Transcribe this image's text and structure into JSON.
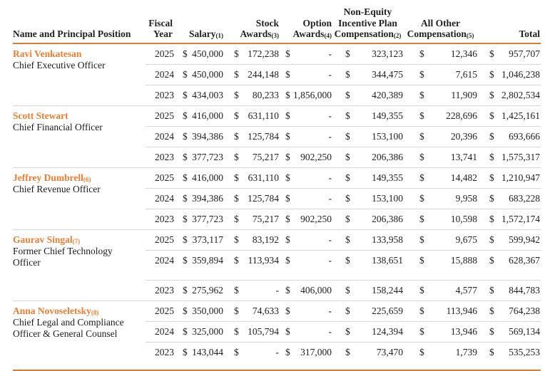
{
  "colors": {
    "orange": "#ED7D31",
    "rule-orange": "#DD7B33",
    "rule-gray": "#D6D4D4",
    "text": "#212121"
  },
  "currency_symbol": "$",
  "empty_value": "-",
  "table": {
    "columns": [
      {
        "id": "name",
        "label_lines": [
          "Name and Principal Position"
        ],
        "sub": null,
        "align": "left",
        "width": 186
      },
      {
        "id": "year",
        "label_lines": [
          "Fiscal",
          "Year"
        ],
        "sub": null,
        "align": "right",
        "width": 48
      },
      {
        "id": "salary",
        "label_lines": [
          "Salary"
        ],
        "sub": "(1)",
        "align": "right",
        "width": 62
      },
      {
        "id": "stock",
        "label_lines": [
          "Stock",
          "Awards"
        ],
        "sub": "(3)",
        "align": "right",
        "width": 78
      },
      {
        "id": "option",
        "label_lines": [
          "Option",
          "Awards"
        ],
        "sub": "(4)",
        "align": "right",
        "width": 74
      },
      {
        "id": "non_equity",
        "label_lines": [
          "Non-Equity",
          "Incentive Plan",
          "Compensation"
        ],
        "sub": "(2)",
        "align": "center",
        "width": 100
      },
      {
        "id": "all_other",
        "label_lines": [
          "All Other",
          "Compensation"
        ],
        "sub": "(5)",
        "align": "center",
        "width": 104
      },
      {
        "id": "total",
        "label_lines": [
          "Total"
        ],
        "sub": null,
        "align": "right",
        "width": 88
      }
    ],
    "money_column_ids": [
      "salary",
      "stock",
      "option",
      "non_equity",
      "all_other",
      "total"
    ],
    "groups": [
      {
        "name": "Ravi Venkatesan",
        "name_sub": null,
        "title": "Chief Executive Officer",
        "rows": [
          {
            "year": "2025",
            "salary": "450,000",
            "stock": "172,238",
            "option": "-",
            "non_equity": "323,123",
            "all_other": "12,346",
            "total": "957,707"
          },
          {
            "year": "2024",
            "salary": "450,000",
            "stock": "244,148",
            "option": "-",
            "non_equity": "344,475",
            "all_other": "7,615",
            "total": "1,046,238"
          },
          {
            "year": "2023",
            "salary": "434,003",
            "stock": "80,233",
            "option": "1,856,000",
            "non_equity": "420,389",
            "all_other": "11,909",
            "total": "2,802,534"
          }
        ]
      },
      {
        "name": "Scott Stewart",
        "name_sub": null,
        "title": "Chief Financial Officer",
        "rows": [
          {
            "year": "2025",
            "salary": "416,000",
            "stock": "631,110",
            "option": "-",
            "non_equity": "149,355",
            "all_other": "228,696",
            "total": "1,425,161"
          },
          {
            "year": "2024",
            "salary": "394,386",
            "stock": "125,784",
            "option": "-",
            "non_equity": "153,100",
            "all_other": "20,396",
            "total": "693,666"
          },
          {
            "year": "2023",
            "salary": "377,723",
            "stock": "75,217",
            "option": "902,250",
            "non_equity": "206,386",
            "all_other": "13,741",
            "total": "1,575,317"
          }
        ]
      },
      {
        "name": "Jeffrey Dumbrell",
        "name_sub": "(6)",
        "title": "Chief Revenue Officer",
        "rows": [
          {
            "year": "2025",
            "salary": "416,000",
            "stock": "631,110",
            "option": "-",
            "non_equity": "149,355",
            "all_other": "14,482",
            "total": "1,210,947"
          },
          {
            "year": "2024",
            "salary": "394,386",
            "stock": "125,784",
            "option": "-",
            "non_equity": "153,100",
            "all_other": "9,958",
            "total": "683,228"
          },
          {
            "year": "2023",
            "salary": "377,723",
            "stock": "75,217",
            "option": "902,250",
            "non_equity": "206,386",
            "all_other": "10,598",
            "total": "1,572,174"
          }
        ]
      },
      {
        "name": "Gaurav Singal",
        "name_sub": "(7)",
        "title": "Former Chief Technology Officer",
        "rows": [
          {
            "year": "2025",
            "salary": "373,117",
            "stock": "83,192",
            "option": "-",
            "non_equity": "133,958",
            "all_other": "9,675",
            "total": "599,942"
          },
          {
            "year": "2024",
            "salary": "359,894",
            "stock": "113,934",
            "option": "-",
            "non_equity": "138,651",
            "all_other": "15,888",
            "total": "628,367",
            "spacer_below": true
          },
          {
            "year": "2023",
            "salary": "275,962",
            "stock": "-",
            "option": "406,000",
            "non_equity": "158,244",
            "all_other": "4,577",
            "total": "844,783"
          }
        ]
      },
      {
        "name": "Anna Novoseletsky",
        "name_sub": "(8)",
        "title": "Chief Legal and Compliance Officer & General Counsel",
        "rows": [
          {
            "year": "2025",
            "salary": "350,000",
            "stock": "74,633",
            "option": "-",
            "non_equity": "225,659",
            "all_other": "113,946",
            "total": "764,238"
          },
          {
            "year": "2024",
            "salary": "325,000",
            "stock": "105,794",
            "option": "-",
            "non_equity": "124,394",
            "all_other": "13,946",
            "total": "569,134"
          },
          {
            "year": "2023",
            "salary": "143,044",
            "stock": "-",
            "option": "317,000",
            "non_equity": "73,470",
            "all_other": "1,739",
            "total": "535,253"
          }
        ]
      }
    ]
  }
}
